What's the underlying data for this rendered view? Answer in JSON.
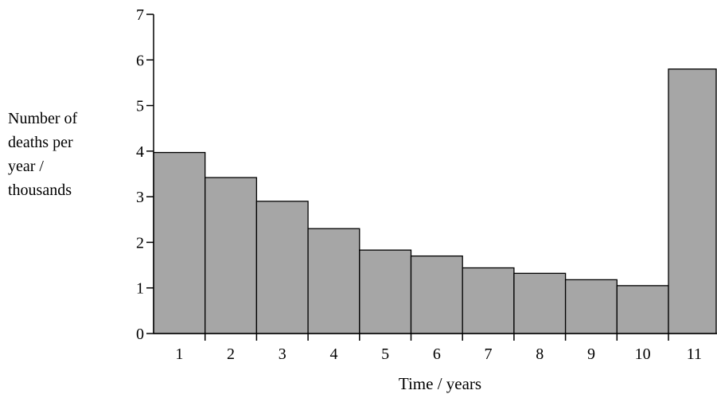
{
  "chart_data": {
    "type": "bar",
    "categories": [
      "1",
      "2",
      "3",
      "4",
      "5",
      "6",
      "7",
      "8",
      "9",
      "10",
      "11"
    ],
    "values": [
      3.97,
      3.42,
      2.9,
      2.3,
      1.83,
      1.7,
      1.44,
      1.32,
      1.18,
      1.05,
      5.8
    ],
    "title": "",
    "xlabel": "Time / years",
    "ylabel_lines": [
      "Number of",
      "deaths per",
      "year /",
      "thousands"
    ],
    "ylim": [
      0,
      7
    ],
    "yticks": [
      "0",
      "1",
      "2",
      "3",
      "4",
      "5",
      "6",
      "7"
    ],
    "bar_color": "#a6a6a6",
    "edge_color": "#000000",
    "grid": false,
    "legend": "none"
  }
}
